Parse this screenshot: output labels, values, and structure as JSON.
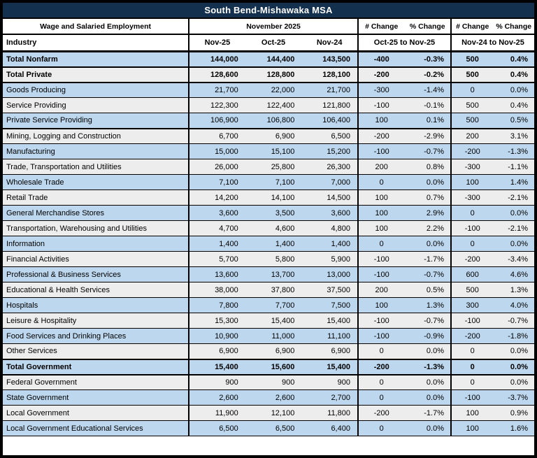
{
  "colors": {
    "title_bg": "#13304F",
    "title_text": "#FFFFFF",
    "row_blue": "#BDD7EE",
    "row_gray": "#EDEDED",
    "border": "#000000"
  },
  "header": {
    "employment_label": "Wage and Salaried Employment",
    "month_label": "November 2025",
    "num_change_label": "# Change",
    "pct_change_label": "% Change",
    "industry_label": "Industry",
    "col_nov25": "Nov-25",
    "col_oct25": "Oct-25",
    "col_nov24": "Nov-24",
    "mom_range_label": "Oct-25 to Nov-25",
    "yoy_range_label": "Nov-24 to Nov-25"
  },
  "chart_data": {
    "type": "table",
    "title": "South Bend-Mishawaka MSA",
    "columns": [
      "Industry",
      "Nov-25",
      "Oct-25",
      "Nov-24",
      "# Change Oct-25 to Nov-25",
      "% Change Oct-25 to Nov-25",
      "# Change Nov-24 to Nov-25",
      "% Change Nov-24 to Nov-25"
    ],
    "rows": [
      {
        "industry": "Total Nonfarm",
        "nov25": "144,000",
        "oct25": "144,400",
        "nov24": "143,500",
        "mom_num": "-400",
        "mom_pct": "-0.3%",
        "yoy_num": "500",
        "yoy_pct": "0.4%",
        "bold": true,
        "thick_bottom": true
      },
      {
        "industry": "Total Private",
        "nov25": "128,600",
        "oct25": "128,800",
        "nov24": "128,100",
        "mom_num": "-200",
        "mom_pct": "-0.2%",
        "yoy_num": "500",
        "yoy_pct": "0.4%",
        "bold": true,
        "thick_bottom": true
      },
      {
        "industry": "Goods Producing",
        "nov25": "21,700",
        "oct25": "22,000",
        "nov24": "21,700",
        "mom_num": "-300",
        "mom_pct": "-1.4%",
        "yoy_num": "0",
        "yoy_pct": "0.0%",
        "bold": false,
        "thick_bottom": false
      },
      {
        "industry": "Service Providing",
        "nov25": "122,300",
        "oct25": "122,400",
        "nov24": "121,800",
        "mom_num": "-100",
        "mom_pct": "-0.1%",
        "yoy_num": "500",
        "yoy_pct": "0.4%",
        "bold": false,
        "thick_bottom": false
      },
      {
        "industry": "Private Service Providing",
        "nov25": "106,900",
        "oct25": "106,800",
        "nov24": "106,400",
        "mom_num": "100",
        "mom_pct": "0.1%",
        "yoy_num": "500",
        "yoy_pct": "0.5%",
        "bold": false,
        "thick_bottom": true
      },
      {
        "industry": "Mining, Logging and Construction",
        "nov25": "6,700",
        "oct25": "6,900",
        "nov24": "6,500",
        "mom_num": "-200",
        "mom_pct": "-2.9%",
        "yoy_num": "200",
        "yoy_pct": "3.1%",
        "bold": false,
        "thick_bottom": false
      },
      {
        "industry": "Manufacturing",
        "nov25": "15,000",
        "oct25": "15,100",
        "nov24": "15,200",
        "mom_num": "-100",
        "mom_pct": "-0.7%",
        "yoy_num": "-200",
        "yoy_pct": "-1.3%",
        "bold": false,
        "thick_bottom": false
      },
      {
        "industry": "Trade, Transportation and Utilities",
        "nov25": "26,000",
        "oct25": "25,800",
        "nov24": "26,300",
        "mom_num": "200",
        "mom_pct": "0.8%",
        "yoy_num": "-300",
        "yoy_pct": "-1.1%",
        "bold": false,
        "thick_bottom": false
      },
      {
        "industry": "Wholesale Trade",
        "nov25": "7,100",
        "oct25": "7,100",
        "nov24": "7,000",
        "mom_num": "0",
        "mom_pct": "0.0%",
        "yoy_num": "100",
        "yoy_pct": "1.4%",
        "bold": false,
        "thick_bottom": false
      },
      {
        "industry": "Retail Trade",
        "nov25": "14,200",
        "oct25": "14,100",
        "nov24": "14,500",
        "mom_num": "100",
        "mom_pct": "0.7%",
        "yoy_num": "-300",
        "yoy_pct": "-2.1%",
        "bold": false,
        "thick_bottom": false
      },
      {
        "industry": "General Merchandise Stores",
        "nov25": "3,600",
        "oct25": "3,500",
        "nov24": "3,600",
        "mom_num": "100",
        "mom_pct": "2.9%",
        "yoy_num": "0",
        "yoy_pct": "0.0%",
        "bold": false,
        "thick_bottom": false
      },
      {
        "industry": "Transportation, Warehousing and Utilities",
        "nov25": "4,700",
        "oct25": "4,600",
        "nov24": "4,800",
        "mom_num": "100",
        "mom_pct": "2.2%",
        "yoy_num": "-100",
        "yoy_pct": "-2.1%",
        "bold": false,
        "thick_bottom": false
      },
      {
        "industry": "Information",
        "nov25": "1,400",
        "oct25": "1,400",
        "nov24": "1,400",
        "mom_num": "0",
        "mom_pct": "0.0%",
        "yoy_num": "0",
        "yoy_pct": "0.0%",
        "bold": false,
        "thick_bottom": false
      },
      {
        "industry": "Financial Activities",
        "nov25": "5,700",
        "oct25": "5,800",
        "nov24": "5,900",
        "mom_num": "-100",
        "mom_pct": "-1.7%",
        "yoy_num": "-200",
        "yoy_pct": "-3.4%",
        "bold": false,
        "thick_bottom": false
      },
      {
        "industry": "Professional & Business Services",
        "nov25": "13,600",
        "oct25": "13,700",
        "nov24": "13,000",
        "mom_num": "-100",
        "mom_pct": "-0.7%",
        "yoy_num": "600",
        "yoy_pct": "4.6%",
        "bold": false,
        "thick_bottom": false
      },
      {
        "industry": "Educational & Health Services",
        "nov25": "38,000",
        "oct25": "37,800",
        "nov24": "37,500",
        "mom_num": "200",
        "mom_pct": "0.5%",
        "yoy_num": "500",
        "yoy_pct": "1.3%",
        "bold": false,
        "thick_bottom": false
      },
      {
        "industry": "Hospitals",
        "nov25": "7,800",
        "oct25": "7,700",
        "nov24": "7,500",
        "mom_num": "100",
        "mom_pct": "1.3%",
        "yoy_num": "300",
        "yoy_pct": "4.0%",
        "bold": false,
        "thick_bottom": false
      },
      {
        "industry": "Leisure & Hospitality",
        "nov25": "15,300",
        "oct25": "15,400",
        "nov24": "15,400",
        "mom_num": "-100",
        "mom_pct": "-0.7%",
        "yoy_num": "-100",
        "yoy_pct": "-0.7%",
        "bold": false,
        "thick_bottom": false
      },
      {
        "industry": "Food Services and Drinking Places",
        "nov25": "10,900",
        "oct25": "11,000",
        "nov24": "11,100",
        "mom_num": "-100",
        "mom_pct": "-0.9%",
        "yoy_num": "-200",
        "yoy_pct": "-1.8%",
        "bold": false,
        "thick_bottom": false
      },
      {
        "industry": "Other Services",
        "nov25": "6,900",
        "oct25": "6,900",
        "nov24": "6,900",
        "mom_num": "0",
        "mom_pct": "0.0%",
        "yoy_num": "0",
        "yoy_pct": "0.0%",
        "bold": false,
        "thick_bottom": true
      },
      {
        "industry": "Total Government",
        "nov25": "15,400",
        "oct25": "15,600",
        "nov24": "15,400",
        "mom_num": "-200",
        "mom_pct": "-1.3%",
        "yoy_num": "0",
        "yoy_pct": "0.0%",
        "bold": true,
        "thick_bottom": true
      },
      {
        "industry": "Federal Government",
        "nov25": "900",
        "oct25": "900",
        "nov24": "900",
        "mom_num": "0",
        "mom_pct": "0.0%",
        "yoy_num": "0",
        "yoy_pct": "0.0%",
        "bold": false,
        "thick_bottom": false
      },
      {
        "industry": "State Government",
        "nov25": "2,600",
        "oct25": "2,600",
        "nov24": "2,700",
        "mom_num": "0",
        "mom_pct": "0.0%",
        "yoy_num": "-100",
        "yoy_pct": "-3.7%",
        "bold": false,
        "thick_bottom": false
      },
      {
        "industry": "Local Government",
        "nov25": "11,900",
        "oct25": "12,100",
        "nov24": "11,800",
        "mom_num": "-200",
        "mom_pct": "-1.7%",
        "yoy_num": "100",
        "yoy_pct": "0.9%",
        "bold": false,
        "thick_bottom": false
      },
      {
        "industry": "Local Government Educational Services",
        "nov25": "6,500",
        "oct25": "6,500",
        "nov24": "6,400",
        "mom_num": "0",
        "mom_pct": "0.0%",
        "yoy_num": "100",
        "yoy_pct": "1.6%",
        "bold": false,
        "thick_bottom": false
      }
    ]
  }
}
